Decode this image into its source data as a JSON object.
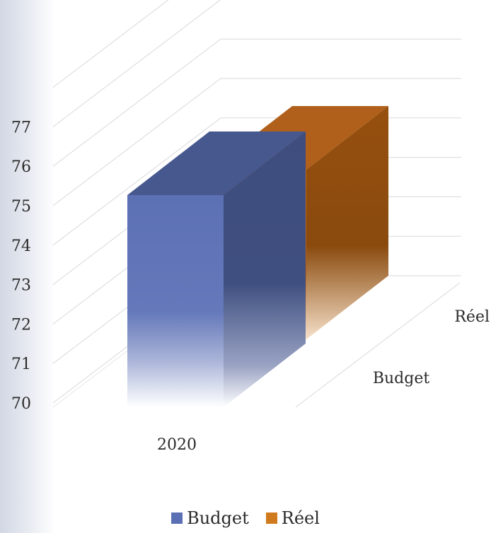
{
  "chart_data": {
    "type": "bar",
    "title": "",
    "xlabel": "",
    "ylabel": "",
    "categories": [
      "2020"
    ],
    "depth_categories": [
      "Budget",
      "Réel"
    ],
    "series": [
      {
        "name": "Budget",
        "values": [
          76
        ],
        "color": "#5b6fb5"
      },
      {
        "name": "Réel",
        "values": [
          74.8
        ],
        "color": "#c86d1a"
      }
    ],
    "y_ticks": [
      "70",
      "71",
      "72",
      "73",
      "74",
      "75",
      "76",
      "77"
    ],
    "ylim": [
      70,
      77
    ],
    "grid": true,
    "legend_position": "bottom"
  },
  "legend": [
    {
      "label": "Budget",
      "color": "#5b6fb5"
    },
    {
      "label": "Réel",
      "color": "#d07a1e"
    }
  ]
}
